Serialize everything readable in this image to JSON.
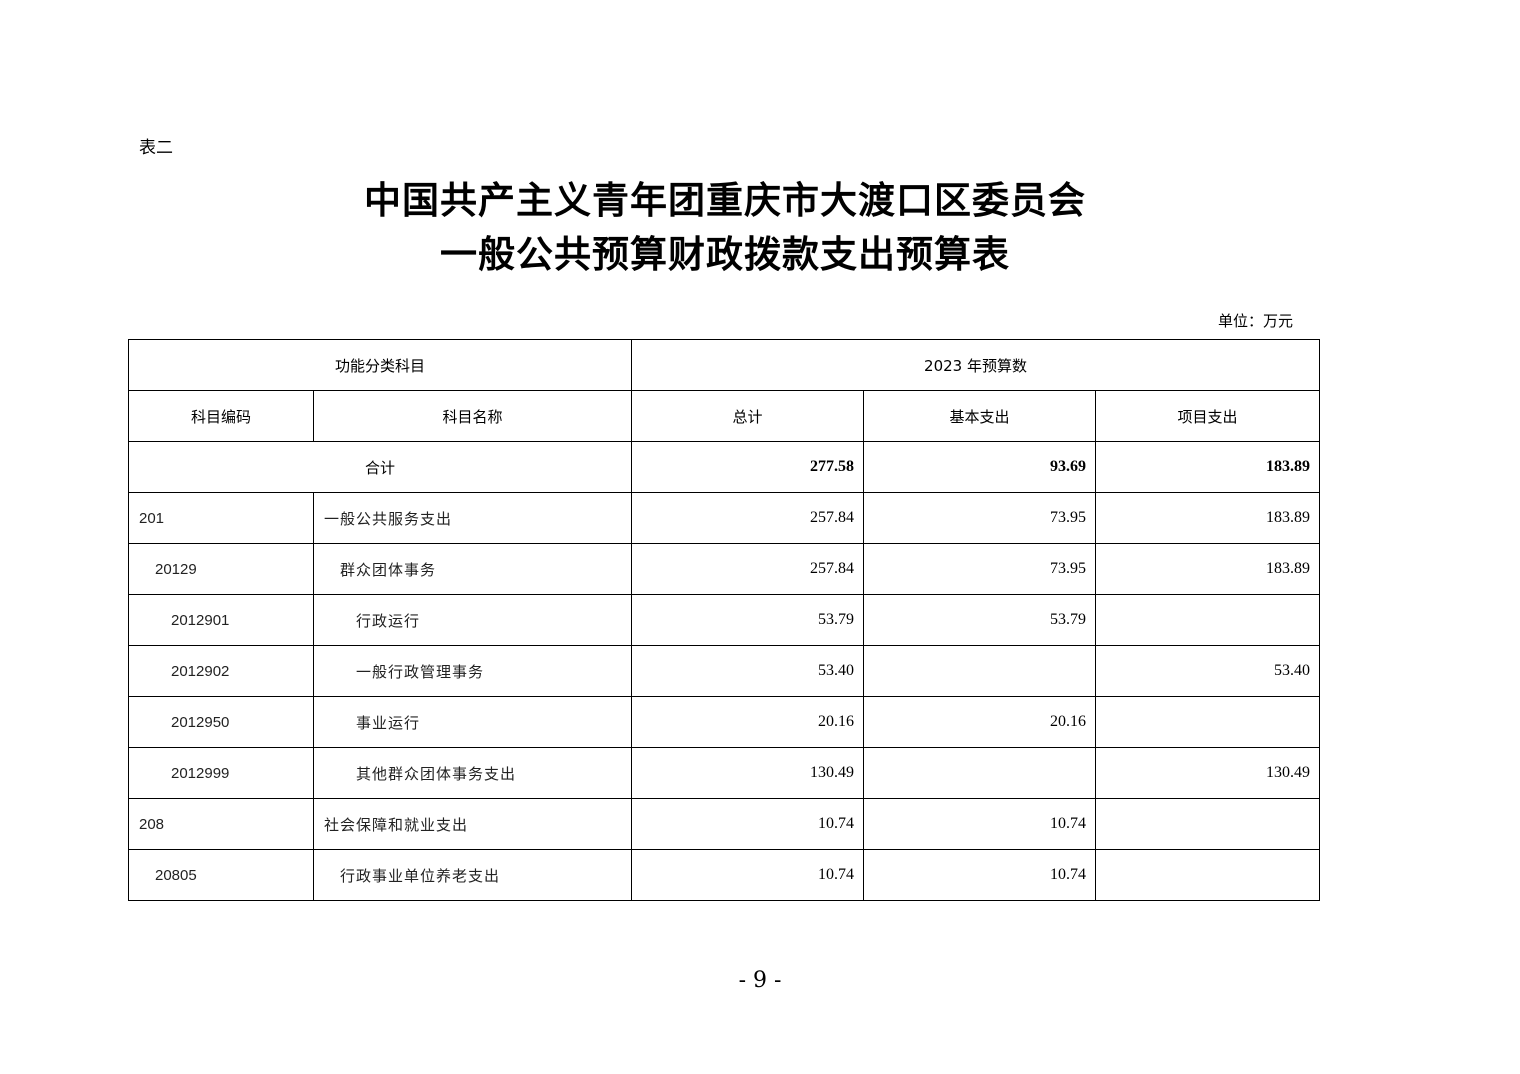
{
  "label": "表二",
  "title_line1": "中国共产主义青年团重庆市大渡口区委员会",
  "title_line2": "一般公共预算财政拨款支出预算表",
  "unit": "单位：万元",
  "table": {
    "header_group_left": "功能分类科目",
    "header_group_right": "2023 年预算数",
    "columns": [
      "科目编码",
      "科目名称",
      "总计",
      "基本支出",
      "项目支出"
    ],
    "total": {
      "label": "合计",
      "total": "277.58",
      "basic": "93.69",
      "project": "183.89"
    },
    "rows": [
      {
        "code": "201",
        "name": "一般公共服务支出",
        "total": "257.84",
        "basic": "73.95",
        "project": "183.89",
        "level": 0
      },
      {
        "code": "20129",
        "name": "群众团体事务",
        "total": "257.84",
        "basic": "73.95",
        "project": "183.89",
        "level": 1
      },
      {
        "code": "2012901",
        "name": "行政运行",
        "total": "53.79",
        "basic": "53.79",
        "project": "",
        "level": 2
      },
      {
        "code": "2012902",
        "name": "一般行政管理事务",
        "total": "53.40",
        "basic": "",
        "project": "53.40",
        "level": 2
      },
      {
        "code": "2012950",
        "name": "事业运行",
        "total": "20.16",
        "basic": "20.16",
        "project": "",
        "level": 2
      },
      {
        "code": "2012999",
        "name": "其他群众团体事务支出",
        "total": "130.49",
        "basic": "",
        "project": "130.49",
        "level": 2
      },
      {
        "code": "208",
        "name": "社会保障和就业支出",
        "total": "10.74",
        "basic": "10.74",
        "project": "",
        "level": 0
      },
      {
        "code": "20805",
        "name": "行政事业单位养老支出",
        "total": "10.74",
        "basic": "10.74",
        "project": "",
        "level": 1
      }
    ]
  },
  "page_number": "- 9 -"
}
